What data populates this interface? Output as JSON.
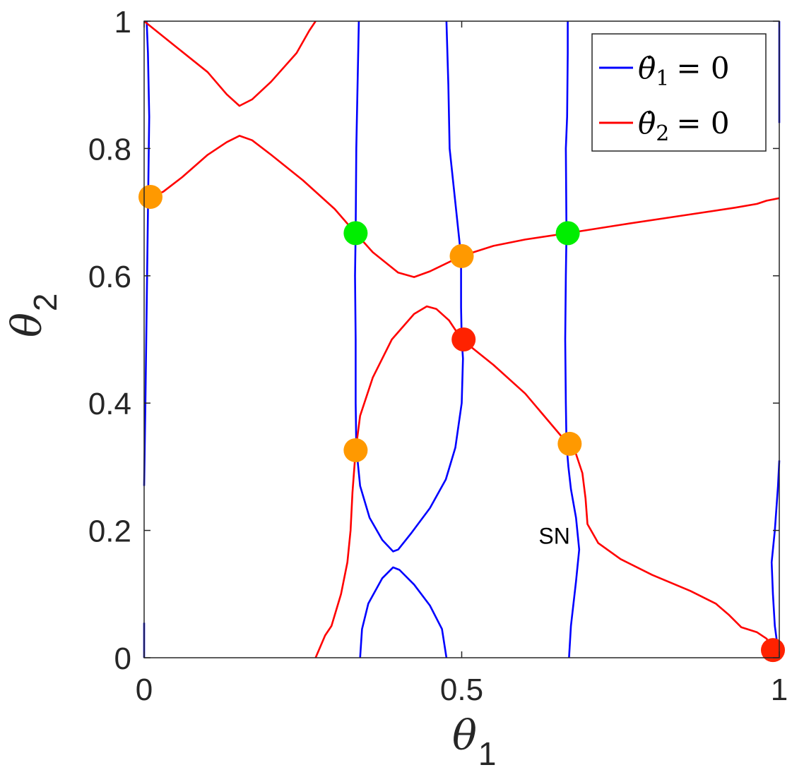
{
  "chart_data": {
    "type": "line",
    "xlabel": "θ",
    "xlabel_sub": "1",
    "ylabel": "θ",
    "ylabel_sub": "2",
    "xlim": [
      0,
      1
    ],
    "ylim": [
      0,
      1
    ],
    "xticks": [
      0,
      0.5,
      1
    ],
    "xtick_labels": [
      "0",
      "0.5",
      "1"
    ],
    "yticks": [
      0,
      0.2,
      0.4,
      0.6,
      0.8,
      1
    ],
    "ytick_labels": [
      "0",
      "0.2",
      "0.4",
      "0.6",
      "0.8",
      "1"
    ],
    "grid": false,
    "legend_position": "top-right",
    "annotations": [
      {
        "text": "SN",
        "x": 0.65,
        "y": 0.19
      }
    ],
    "series": [
      {
        "name": "θ̇1 = 0",
        "legend_lhs": "θ̇",
        "legend_sub": "1",
        "legend_rhs": "= 0",
        "color": "#0000ff",
        "curves": [
          [
            [
              0.0,
              0.27
            ],
            [
              0.002,
              0.4
            ],
            [
              0.004,
              0.55
            ],
            [
              0.006,
              0.7
            ],
            [
              0.008,
              0.85
            ],
            [
              0.006,
              0.95
            ],
            [
              0.004,
              1.0
            ]
          ],
          [
            [
              0.0,
              0.055
            ],
            [
              0.0,
              0.0
            ]
          ],
          [
            [
              0.338,
              1.0
            ],
            [
              0.336,
              0.9
            ],
            [
              0.334,
              0.8
            ],
            [
              0.333,
              0.67
            ],
            [
              0.332,
              0.6
            ],
            [
              0.333,
              0.5
            ],
            [
              0.333,
              0.4
            ],
            [
              0.334,
              0.33
            ],
            [
              0.34,
              0.27
            ],
            [
              0.355,
              0.22
            ],
            [
              0.375,
              0.185
            ],
            [
              0.392,
              0.167
            ],
            [
              0.4,
              0.17
            ],
            [
              0.42,
              0.195
            ],
            [
              0.45,
              0.235
            ],
            [
              0.475,
              0.28
            ],
            [
              0.49,
              0.33
            ],
            [
              0.5,
              0.4
            ],
            [
              0.502,
              0.47
            ],
            [
              0.5,
              0.5
            ],
            [
              0.499,
              0.55
            ],
            [
              0.499,
              0.63
            ],
            [
              0.481,
              0.8
            ],
            [
              0.479,
              0.9
            ],
            [
              0.476,
              1.0
            ]
          ],
          [
            [
              0.34,
              0.0
            ],
            [
              0.343,
              0.045
            ],
            [
              0.353,
              0.085
            ],
            [
              0.375,
              0.125
            ],
            [
              0.392,
              0.142
            ],
            [
              0.402,
              0.138
            ],
            [
              0.425,
              0.115
            ],
            [
              0.45,
              0.082
            ],
            [
              0.469,
              0.045
            ],
            [
              0.476,
              0.0
            ]
          ],
          [
            [
              0.669,
              0.0
            ],
            [
              0.672,
              0.05
            ],
            [
              0.68,
              0.12
            ],
            [
              0.685,
              0.17
            ],
            [
              0.68,
              0.22
            ],
            [
              0.672,
              0.265
            ],
            [
              0.668,
              0.3
            ],
            [
              0.665,
              0.336
            ],
            [
              0.664,
              0.4
            ],
            [
              0.663,
              0.5
            ],
            [
              0.664,
              0.6
            ],
            [
              0.665,
              0.667
            ],
            [
              0.664,
              0.8
            ],
            [
              0.666,
              0.85
            ],
            [
              0.667,
              0.95
            ],
            [
              0.667,
              1.0
            ]
          ],
          [
            [
              1.0,
              0.0
            ],
            [
              0.997,
              0.02
            ],
            [
              0.993,
              0.05
            ],
            [
              0.99,
              0.1
            ],
            [
              0.988,
              0.15
            ],
            [
              0.993,
              0.2
            ],
            [
              0.998,
              0.27
            ],
            [
              1.0,
              0.31
            ]
          ],
          [
            [
              1.0,
              0.84
            ],
            [
              1.0,
              0.93
            ],
            [
              1.0,
              1.0
            ]
          ]
        ]
      },
      {
        "name": "θ̇2 = 0",
        "legend_lhs": "θ̇",
        "legend_sub": "2",
        "legend_rhs": "= 0",
        "color": "#ff0000",
        "curves": [
          [
            [
              0.0,
              1.0
            ],
            [
              0.05,
              0.96
            ],
            [
              0.1,
              0.92
            ],
            [
              0.13,
              0.885
            ],
            [
              0.15,
              0.867
            ],
            [
              0.17,
              0.877
            ],
            [
              0.2,
              0.905
            ],
            [
              0.24,
              0.95
            ],
            [
              0.26,
              0.985
            ],
            [
              0.27,
              1.0
            ]
          ],
          [
            [
              0.0,
              0.72
            ],
            [
              0.03,
              0.732
            ],
            [
              0.06,
              0.755
            ],
            [
              0.1,
              0.79
            ],
            [
              0.13,
              0.81
            ],
            [
              0.15,
              0.82
            ],
            [
              0.17,
              0.813
            ],
            [
              0.2,
              0.79
            ],
            [
              0.25,
              0.75
            ],
            [
              0.3,
              0.705
            ],
            [
              0.333,
              0.667
            ],
            [
              0.36,
              0.637
            ],
            [
              0.4,
              0.605
            ],
            [
              0.425,
              0.598
            ],
            [
              0.45,
              0.607
            ],
            [
              0.5,
              0.631
            ],
            [
              0.55,
              0.647
            ],
            [
              0.6,
              0.657
            ],
            [
              0.667,
              0.667
            ],
            [
              0.75,
              0.68
            ],
            [
              0.85,
              0.695
            ],
            [
              0.93,
              0.707
            ],
            [
              0.965,
              0.713
            ],
            [
              0.98,
              0.718
            ],
            [
              1.0,
              0.722
            ]
          ],
          [
            [
              0.27,
              0.0
            ],
            [
              0.285,
              0.035
            ],
            [
              0.295,
              0.05
            ],
            [
              0.31,
              0.1
            ],
            [
              0.32,
              0.15
            ],
            [
              0.325,
              0.2
            ],
            [
              0.328,
              0.26
            ],
            [
              0.333,
              0.326
            ],
            [
              0.34,
              0.38
            ],
            [
              0.36,
              0.44
            ],
            [
              0.39,
              0.5
            ],
            [
              0.425,
              0.54
            ],
            [
              0.445,
              0.552
            ],
            [
              0.46,
              0.548
            ],
            [
              0.48,
              0.53
            ],
            [
              0.5,
              0.5
            ],
            [
              0.55,
              0.46
            ],
            [
              0.6,
              0.415
            ],
            [
              0.667,
              0.336
            ],
            [
              0.68,
              0.32
            ],
            [
              0.69,
              0.29
            ],
            [
              0.695,
              0.25
            ],
            [
              0.698,
              0.21
            ],
            [
              0.715,
              0.18
            ],
            [
              0.75,
              0.155
            ],
            [
              0.8,
              0.13
            ],
            [
              0.86,
              0.105
            ],
            [
              0.9,
              0.085
            ],
            [
              0.92,
              0.068
            ],
            [
              0.94,
              0.048
            ],
            [
              0.965,
              0.04
            ],
            [
              0.98,
              0.03
            ],
            [
              0.99,
              0.012
            ]
          ]
        ]
      }
    ],
    "points": [
      {
        "label": "",
        "x": 0.01,
        "y": 0.724,
        "color": "#ff9900"
      },
      {
        "label": "",
        "x": 0.333,
        "y": 0.667,
        "color": "#00ee00"
      },
      {
        "label": "",
        "x": 0.5,
        "y": 0.631,
        "color": "#ff9900"
      },
      {
        "label": "",
        "x": 0.667,
        "y": 0.667,
        "color": "#00ee00"
      },
      {
        "label": "",
        "x": 0.503,
        "y": 0.5,
        "color": "#ff2200"
      },
      {
        "label": "",
        "x": 0.333,
        "y": 0.326,
        "color": "#ff9900"
      },
      {
        "label": "",
        "x": 0.67,
        "y": 0.336,
        "color": "#ff9900"
      },
      {
        "label": "",
        "x": 0.99,
        "y": 0.012,
        "color": "#ff2200"
      }
    ]
  }
}
